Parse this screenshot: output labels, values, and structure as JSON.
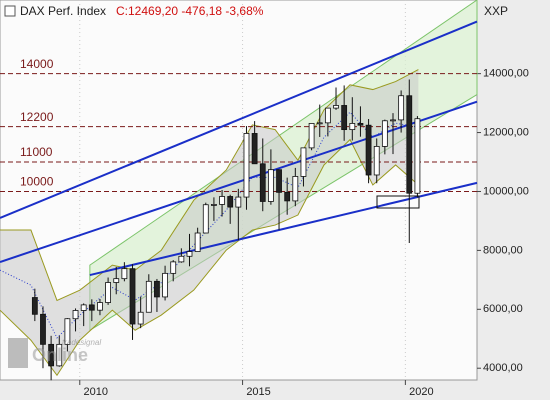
{
  "chart_data": {
    "type": "candlestick",
    "title": "DAX Perf. Index",
    "quote": "C:12469,20 -476,18 -3,68%",
    "corner_label": "XXP",
    "watermark": [
      "tradesignal",
      "Online"
    ],
    "xlim": [
      2007.55,
      2022.2
    ],
    "ylim": [
      3600,
      16500
    ],
    "xticks": [
      2010,
      2015,
      2020
    ],
    "yticks": [
      {
        "value": 4000,
        "label": "4000,00"
      },
      {
        "value": 6000,
        "label": "6000,00"
      },
      {
        "value": 8000,
        "label": "8000,00"
      },
      {
        "value": 10000,
        "label": "10000,00"
      },
      {
        "value": 12000,
        "label": "12000,00"
      },
      {
        "value": 14000,
        "label": "14000,00"
      }
    ],
    "levels": [
      14000,
      12200,
      11000,
      10000
    ],
    "x": [
      2008.62,
      2008.87,
      2009.12,
      2009.37,
      2009.62,
      2009.87,
      2010.12,
      2010.37,
      2010.62,
      2010.87,
      2011.12,
      2011.37,
      2011.62,
      2011.87,
      2012.12,
      2012.37,
      2012.62,
      2012.87,
      2013.12,
      2013.37,
      2013.62,
      2013.87,
      2014.12,
      2014.37,
      2014.62,
      2014.87,
      2015.12,
      2015.37,
      2015.62,
      2015.87,
      2016.12,
      2016.37,
      2016.62,
      2016.87,
      2017.12,
      2017.37,
      2017.62,
      2017.87,
      2018.12,
      2018.37,
      2018.62,
      2018.87,
      2019.12,
      2019.37,
      2019.62,
      2019.87,
      2020.12,
      2020.37
    ],
    "open": [
      6400,
      5830,
      4810,
      4080,
      4810,
      5680,
      5960,
      6150,
      5970,
      6230,
      6910,
      7040,
      7380,
      5500,
      5900,
      6950,
      6420,
      7220,
      7610,
      7800,
      7960,
      8590,
      9550,
      9560,
      9830,
      9470,
      9810,
      11970,
      10940,
      9660,
      10740,
      9970,
      9680,
      10510,
      11480,
      12310,
      12330,
      12830,
      12920,
      12100,
      12310,
      12250,
      10560,
      11530,
      12400,
      12430,
      13250,
      9940
    ],
    "high": [
      6700,
      6100,
      5100,
      5100,
      5700,
      6030,
      6200,
      6340,
      6350,
      7080,
      7440,
      7600,
      7530,
      6430,
      7190,
      7030,
      7480,
      7670,
      8070,
      8560,
      8770,
      9620,
      9800,
      10050,
      9890,
      10090,
      12220,
      12390,
      11800,
      11430,
      10750,
      10470,
      10800,
      11480,
      12310,
      12950,
      12830,
      13530,
      13600,
      13200,
      12890,
      12460,
      11800,
      12440,
      12660,
      13430,
      13800,
      12560
    ],
    "low": [
      5600,
      4000,
      3590,
      4050,
      4570,
      5250,
      5430,
      5600,
      5800,
      6150,
      6510,
      6950,
      4960,
      5360,
      5900,
      5910,
      6300,
      6950,
      7580,
      7460,
      7960,
      8590,
      9000,
      9150,
      8900,
      8350,
      9380,
      10950,
      9330,
      9550,
      8700,
      9210,
      9500,
      10170,
      11400,
      11850,
      11870,
      12770,
      11720,
      11730,
      11860,
      10280,
      10280,
      11260,
      11270,
      12000,
      8250,
      9800
    ],
    "close": [
      5830,
      4810,
      4080,
      4810,
      5680,
      5960,
      6150,
      5970,
      6230,
      6910,
      7040,
      7380,
      5500,
      5900,
      6950,
      6420,
      7220,
      7610,
      7800,
      7960,
      8590,
      9550,
      9560,
      9830,
      9470,
      9810,
      11970,
      10940,
      9660,
      10740,
      9970,
      9680,
      10510,
      11480,
      12310,
      12330,
      12830,
      12920,
      12100,
      12310,
      12250,
      10560,
      11530,
      12400,
      12430,
      13250,
      9940,
      12470
    ],
    "bands": {
      "x": [
        2007.55,
        2008.5,
        2009.3,
        2010,
        2011,
        2011.7,
        2012.5,
        2013.5,
        2014.5,
        2015.3,
        2016,
        2016.7,
        2017.5,
        2018.3,
        2019,
        2019.7,
        2020.4
      ],
      "upper": [
        8690,
        8690,
        6300,
        6650,
        7500,
        7330,
        8000,
        9700,
        10730,
        12260,
        12100,
        11060,
        12770,
        13620,
        13460,
        13730,
        14140
      ],
      "middle": [
        7330,
        6820,
        5030,
        5800,
        6740,
        6310,
        6900,
        8180,
        9370,
        10480,
        10480,
        10130,
        11840,
        12690,
        11840,
        12320,
        12180
      ],
      "lower": [
        5970,
        4950,
        3760,
        4950,
        5970,
        5290,
        5800,
        6650,
        8010,
        8690,
        8860,
        9200,
        10900,
        11760,
        10220,
        10900,
        10220
      ]
    },
    "channel": {
      "x": [
        2010.31,
        2022.2
      ],
      "upper": [
        7500,
        16500
      ],
      "lower": [
        5290,
        13290
      ]
    },
    "trendlines": [
      {
        "x": [
          2007.55,
          2022.2
        ],
        "y": [
          9102,
          15769
        ]
      },
      {
        "x": [
          2007.55,
          2022.2
        ],
        "y": [
          7605,
          13048
        ]
      },
      {
        "x": [
          2010.31,
          2022.2
        ],
        "y": [
          7163,
          10293
        ]
      }
    ]
  }
}
